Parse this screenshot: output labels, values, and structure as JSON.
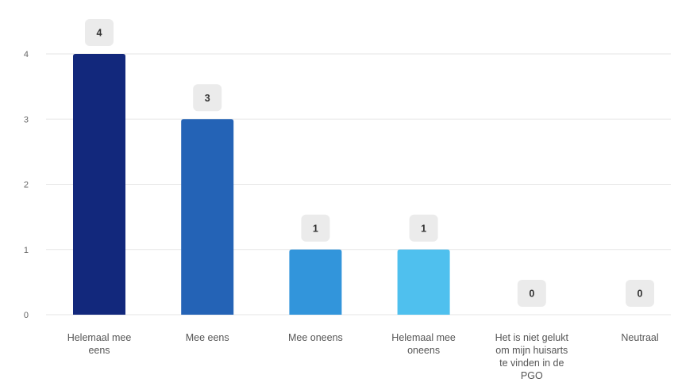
{
  "chart_data": {
    "type": "bar",
    "title": "",
    "xlabel": "",
    "ylabel": "",
    "categories": [
      [
        "Helemaal mee",
        "eens"
      ],
      [
        "Mee eens"
      ],
      [
        "Mee oneens"
      ],
      [
        "Helemaal mee",
        "oneens"
      ],
      [
        "Het is niet gelukt",
        "om mijn huisarts",
        "te vinden in de",
        "PGO"
      ],
      [
        "Neutraal"
      ]
    ],
    "values": [
      4,
      3,
      1,
      1,
      0,
      0
    ],
    "value_labels": [
      "4",
      "3",
      "1",
      "1",
      "0",
      "0"
    ],
    "colors": [
      "#12287c",
      "#2463b6",
      "#3295db",
      "#4fc0ee",
      "#7fd0f2",
      "#a8e0f6"
    ],
    "ylim": [
      0,
      4
    ],
    "yticks": [
      0,
      1,
      2,
      3,
      4
    ],
    "grid": true,
    "legend": "none"
  },
  "style": {
    "grid_color": "#e6e6e6",
    "label_box_color": "#ebebeb"
  }
}
